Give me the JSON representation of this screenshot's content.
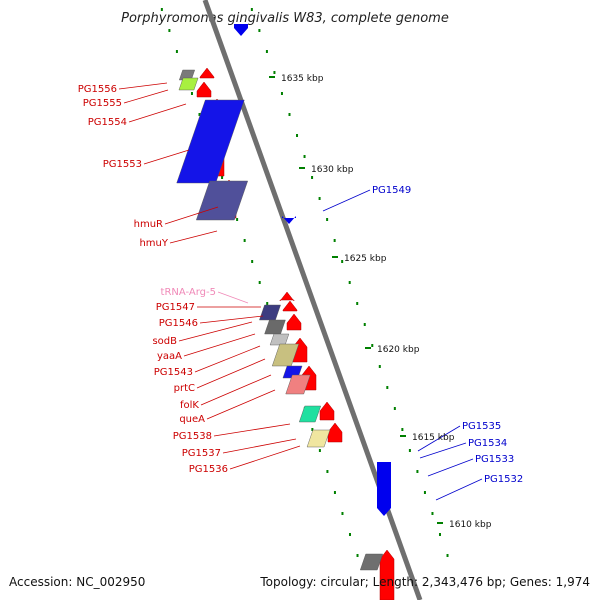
{
  "title": "Porphyromonas gingivalis W83, complete genome",
  "footer": {
    "accession": "Accession: NC_002950",
    "summary": "Topology: circular; Length: 2,343,476 bp; Genes: 1,974"
  },
  "colors": {
    "forward_arrow": "#ff0000",
    "reverse_arrow": "#0000ee",
    "backbone": "#888888",
    "tick_dots": "#008000",
    "label_forward": "#cc0000",
    "label_reverse": "#0000cc",
    "label_trna": "#f08ab8"
  },
  "ticks": [
    "1635 kbp",
    "1630 kbp",
    "1625 kbp",
    "1620 kbp",
    "1615 kbp",
    "1610 kbp"
  ],
  "left_labels": [
    {
      "text": "PG1556",
      "kind": "forward"
    },
    {
      "text": "PG1555",
      "kind": "forward"
    },
    {
      "text": "PG1554",
      "kind": "forward"
    },
    {
      "text": "PG1553",
      "kind": "forward"
    },
    {
      "text": "hmuR",
      "kind": "forward"
    },
    {
      "text": "hmuY",
      "kind": "forward"
    },
    {
      "text": "tRNA-Arg-5",
      "kind": "trna"
    },
    {
      "text": "PG1547",
      "kind": "forward"
    },
    {
      "text": "PG1546",
      "kind": "forward"
    },
    {
      "text": "sodB",
      "kind": "forward"
    },
    {
      "text": "yaaA",
      "kind": "forward"
    },
    {
      "text": "PG1543",
      "kind": "forward"
    },
    {
      "text": "prtC",
      "kind": "forward"
    },
    {
      "text": "folK",
      "kind": "forward"
    },
    {
      "text": "queA",
      "kind": "forward"
    },
    {
      "text": "PG1538",
      "kind": "forward"
    },
    {
      "text": "PG1537",
      "kind": "forward"
    },
    {
      "text": "PG1536",
      "kind": "forward"
    }
  ],
  "right_labels": [
    {
      "text": "PG1549",
      "kind": "reverse"
    },
    {
      "text": "PG1535",
      "kind": "reverse"
    },
    {
      "text": "PG1534",
      "kind": "reverse"
    },
    {
      "text": "PG1533",
      "kind": "reverse"
    },
    {
      "text": "PG1532",
      "kind": "reverse"
    }
  ]
}
